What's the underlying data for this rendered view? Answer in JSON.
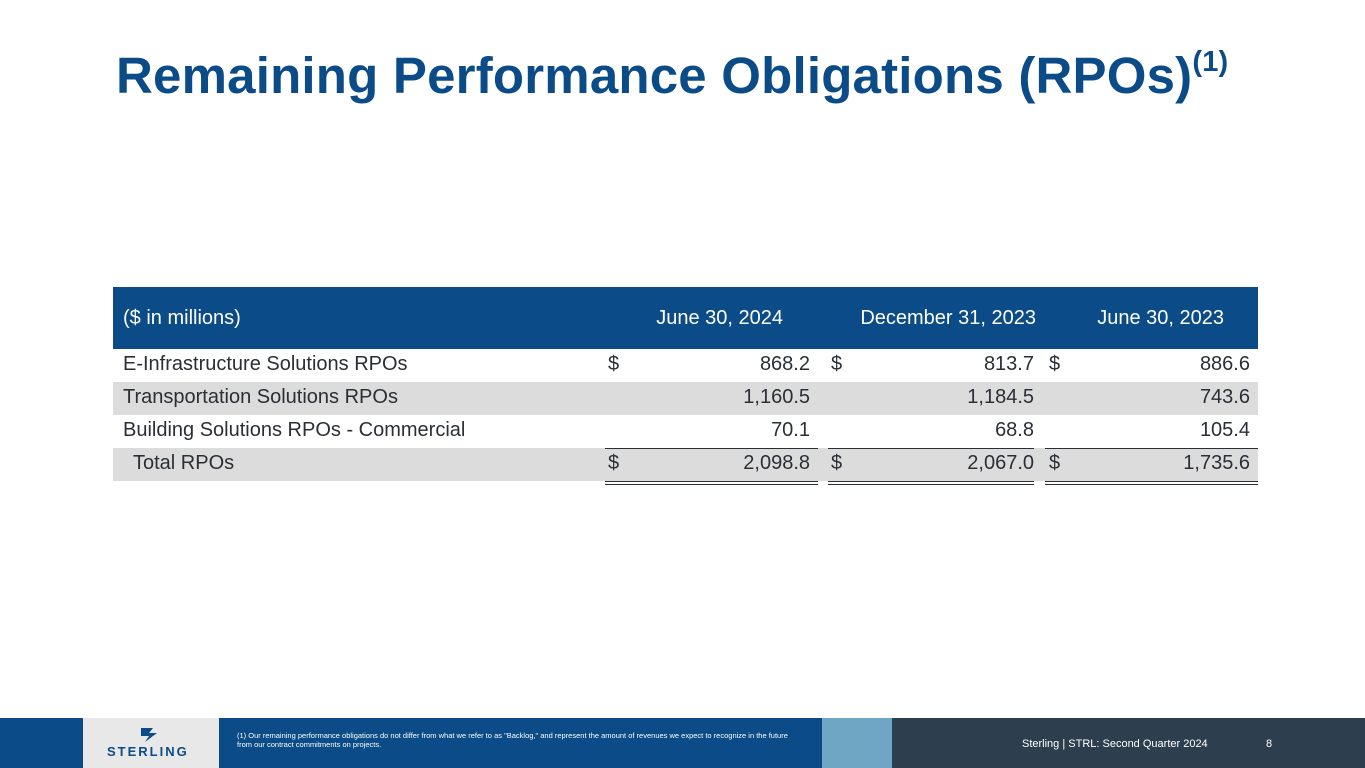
{
  "slide": {
    "title": "Remaining Performance Obligations (RPOs)",
    "title_sup": "(1)"
  },
  "table": {
    "headers": [
      "($ in millions)",
      "June 30, 2024",
      "December 31, 2023",
      "June 30, 2023"
    ],
    "rows": [
      {
        "label": "E-Infrastructure Solutions RPOs",
        "d1": "$",
        "v1": "868.2",
        "d2": "$",
        "v2": "813.7",
        "d3": "$",
        "v3": "886.6"
      },
      {
        "label": "Transportation Solutions RPOs",
        "d1": "",
        "v1": "1,160.5",
        "d2": "",
        "v2": "1,184.5",
        "d3": "",
        "v3": "743.6"
      },
      {
        "label": "Building Solutions RPOs - Commercial",
        "d1": "",
        "v1": "70.1",
        "d2": "",
        "v2": "68.8",
        "d3": "",
        "v3": "105.4"
      },
      {
        "label": "Total RPOs",
        "d1": "$",
        "v1": "2,098.8",
        "d2": "$",
        "v2": "2,067.0",
        "d3": "$",
        "v3": "1,735.6"
      }
    ]
  },
  "footer": {
    "logo_text": "STERLING",
    "footnote": "(1)  Our remaining performance obligations do not differ from what we refer to as \"Backlog,\" and represent the amount of revenues we expect to recognize in the future from our contract commitments on projects.",
    "company": "Sterling | STRL:  Second Quarter  2024",
    "page": "8"
  }
}
